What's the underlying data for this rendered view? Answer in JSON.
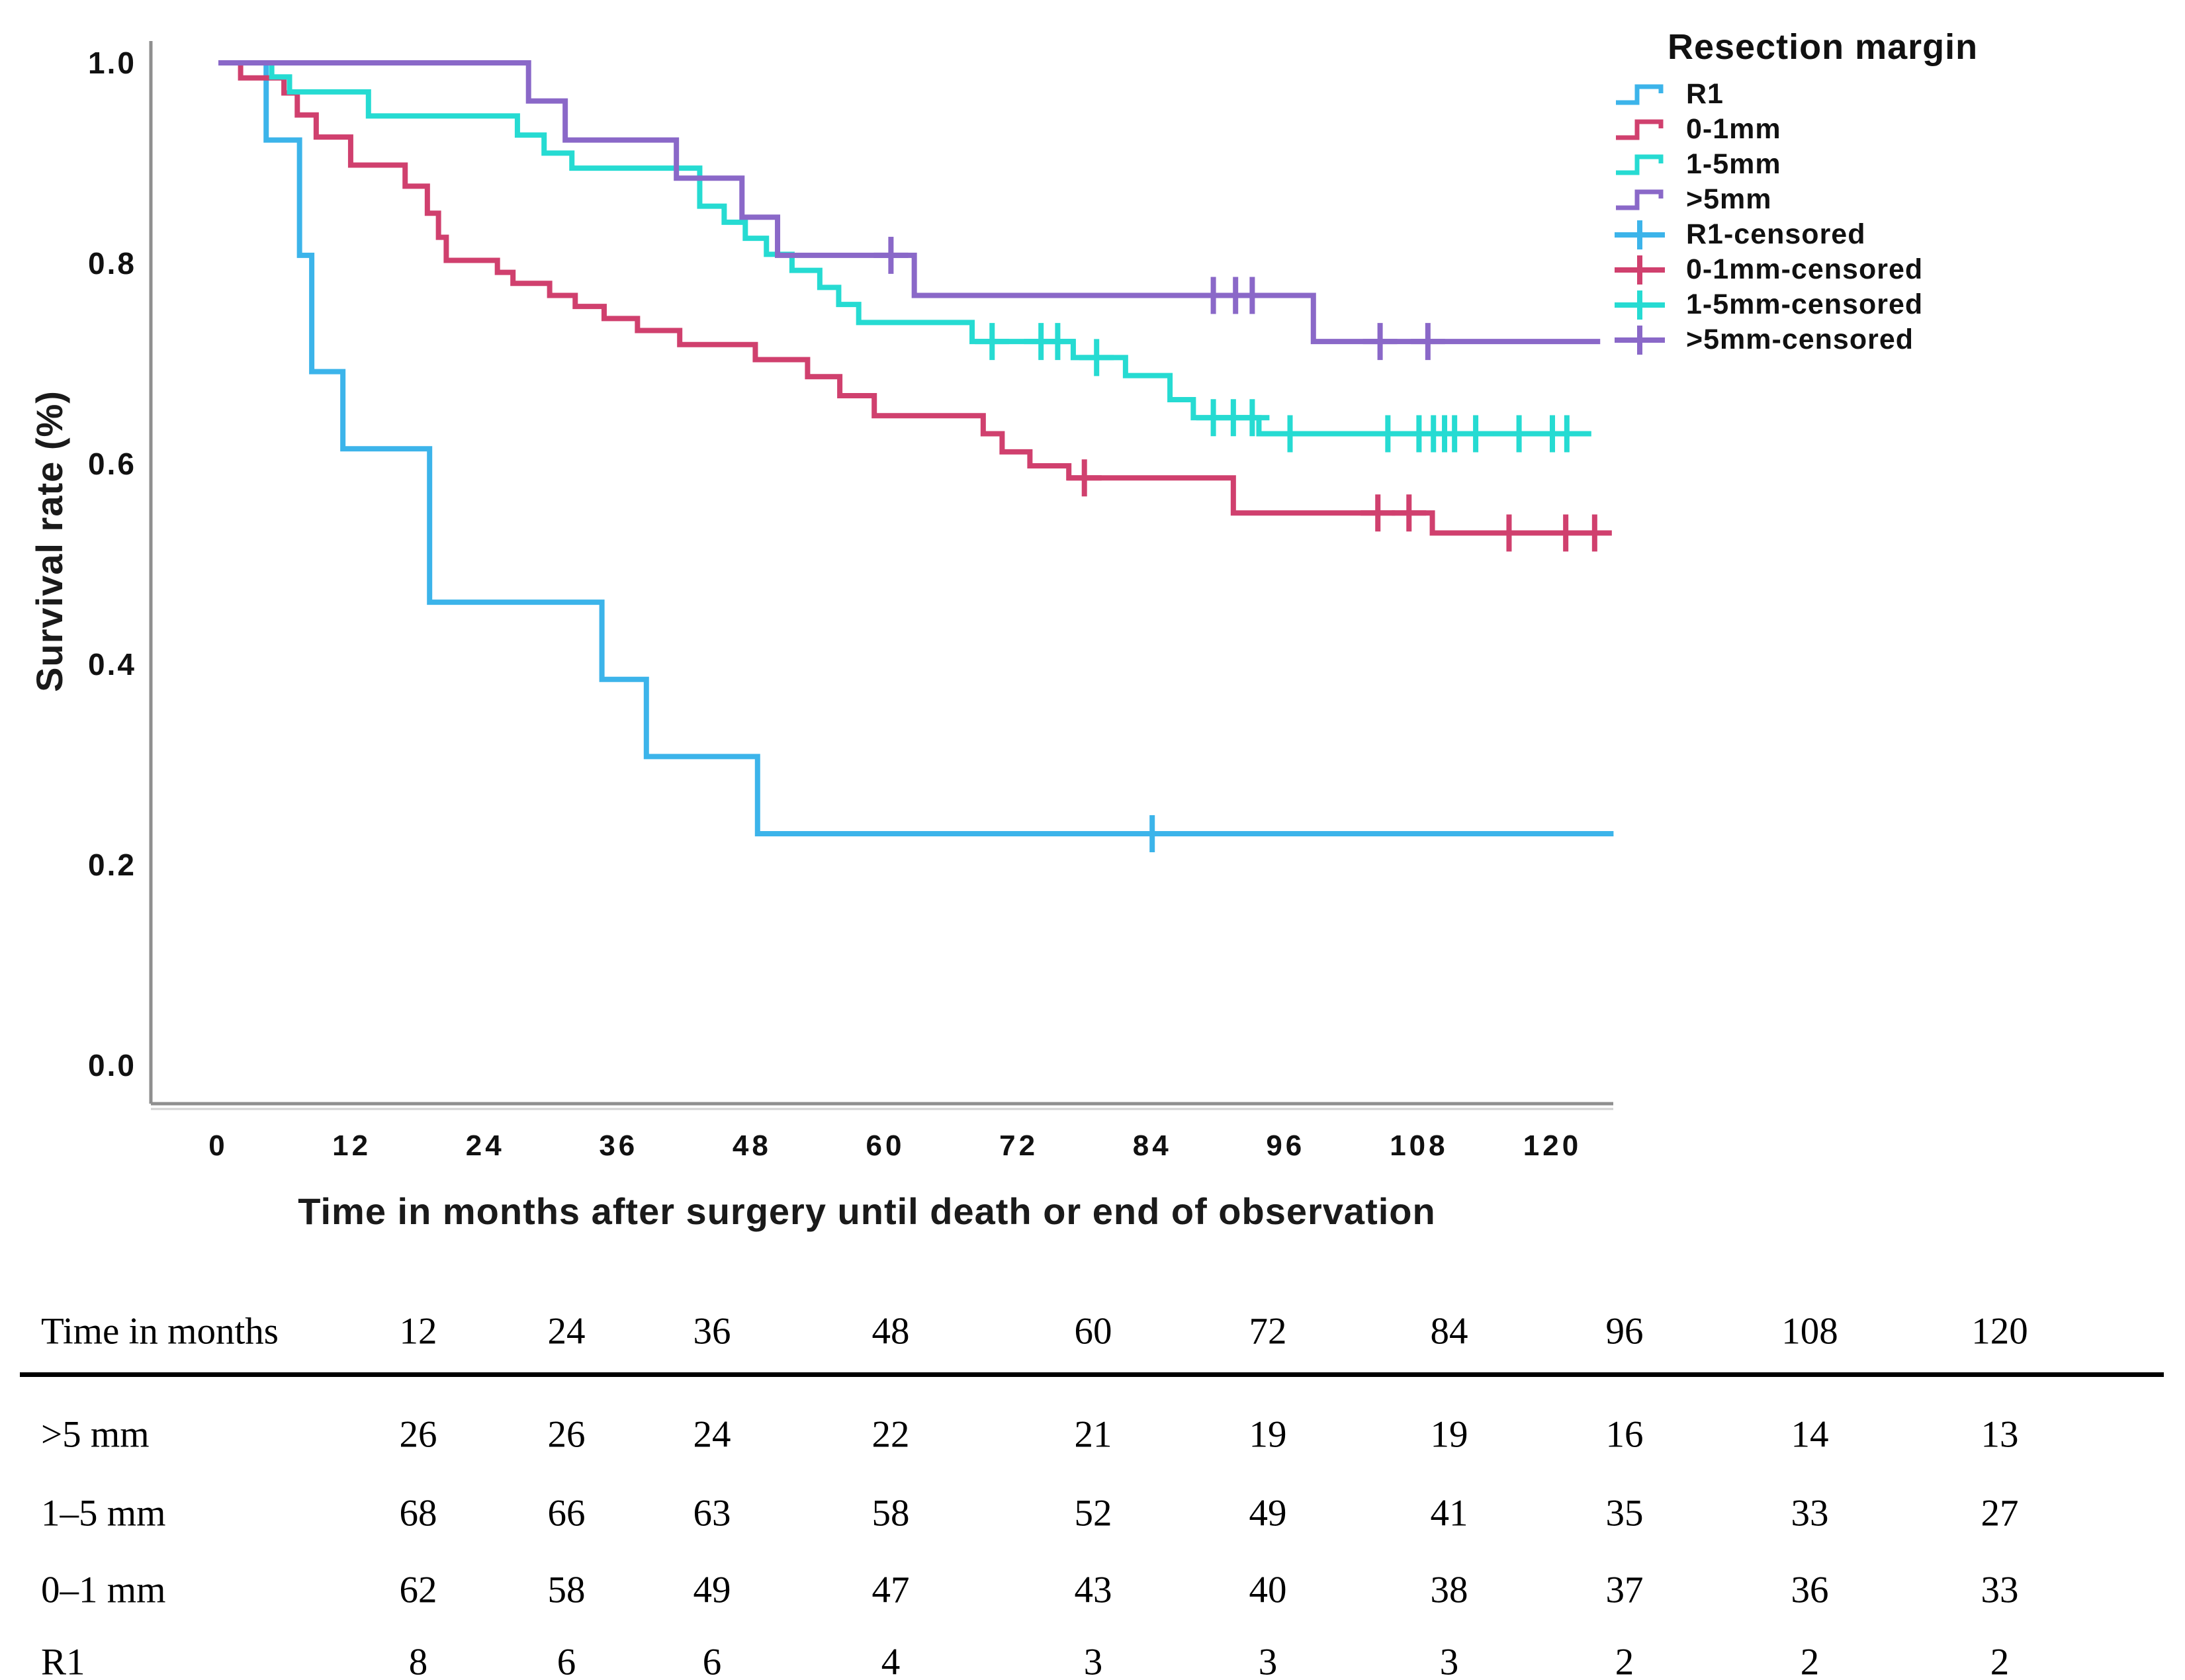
{
  "chart_data": {
    "type": "line",
    "subtype": "kaplan-meier-step",
    "title": "",
    "xlabel": "Time in months after surgery until death or end of observation",
    "ylabel": "Survival rate (%)",
    "xlim": [
      0,
      126
    ],
    "ylim": [
      0.0,
      1.0
    ],
    "grid": false,
    "legend_position": "top-right",
    "legend_title": "Resection margin",
    "x_axis": {
      "ticks": [
        {
          "label": "0",
          "value": 0
        },
        {
          "label": "12",
          "value": 12
        },
        {
          "label": "24",
          "value": 24
        },
        {
          "label": "36",
          "value": 36
        },
        {
          "label": "48",
          "value": 48
        },
        {
          "label": "60",
          "value": 60
        },
        {
          "label": "72",
          "value": 72
        },
        {
          "label": "84",
          "value": 84
        },
        {
          "label": "96",
          "value": 96
        },
        {
          "label": "108",
          "value": 108
        },
        {
          "label": "120",
          "value": 120
        }
      ]
    },
    "y_axis": {
      "ticks": [
        {
          "label": "1.0",
          "value": 1.0
        },
        {
          "label": "0.8",
          "value": 0.8
        },
        {
          "label": "0.6",
          "value": 0.6
        },
        {
          "label": "0.4",
          "value": 0.4
        },
        {
          "label": "0.2",
          "value": 0.2
        },
        {
          "label": "0.0",
          "value": 0.0
        }
      ]
    },
    "series": [
      {
        "name": "R1",
        "color": "#3CB4EA",
        "end_month": 125.5,
        "steps": [
          [
            0,
            1.0
          ],
          [
            4.3,
            0.923
          ],
          [
            7.3,
            0.808
          ],
          [
            8.4,
            0.692
          ],
          [
            11.2,
            0.615
          ],
          [
            19,
            0.462
          ],
          [
            34.5,
            0.385
          ],
          [
            38.5,
            0.308
          ],
          [
            48.5,
            0.231
          ]
        ],
        "censors": [
          [
            84,
            0.231
          ]
        ]
      },
      {
        "name": "0-1mm",
        "color": "#D0406E",
        "end_month": 124,
        "steps": [
          [
            0,
            1.0
          ],
          [
            2,
            0.985
          ],
          [
            5.9,
            0.97
          ],
          [
            7.1,
            0.948
          ],
          [
            8.8,
            0.926
          ],
          [
            11.9,
            0.898
          ],
          [
            16.8,
            0.877
          ],
          [
            18.8,
            0.85
          ],
          [
            19.8,
            0.826
          ],
          [
            20.5,
            0.803
          ],
          [
            25.1,
            0.791
          ],
          [
            26.5,
            0.78
          ],
          [
            29.8,
            0.768
          ],
          [
            32.1,
            0.757
          ],
          [
            34.7,
            0.745
          ],
          [
            37.7,
            0.733
          ],
          [
            41.5,
            0.719
          ],
          [
            48.3,
            0.704
          ],
          [
            53.0,
            0.687
          ],
          [
            55.9,
            0.668
          ],
          [
            59.0,
            0.648
          ],
          [
            68.8,
            0.63
          ],
          [
            70.5,
            0.612
          ],
          [
            73.0,
            0.598
          ],
          [
            76.5,
            0.586
          ],
          [
            91.3,
            0.551
          ],
          [
            109.2,
            0.531
          ]
        ],
        "censors": [
          [
            77.9,
            0.586
          ],
          [
            104.3,
            0.551
          ],
          [
            107.1,
            0.551
          ],
          [
            116.1,
            0.531
          ],
          [
            121.2,
            0.531
          ],
          [
            123.8,
            0.531
          ]
        ]
      },
      {
        "name": "1-5mm",
        "color": "#26DBD2",
        "end_month": 123.5,
        "steps": [
          [
            0,
            1.0
          ],
          [
            4.8,
            0.986
          ],
          [
            6.4,
            0.971
          ],
          [
            13.5,
            0.947
          ],
          [
            26.9,
            0.928
          ],
          [
            29.3,
            0.91
          ],
          [
            31.8,
            0.895
          ],
          [
            43.3,
            0.857
          ],
          [
            45.5,
            0.841
          ],
          [
            47.4,
            0.825
          ],
          [
            49.3,
            0.809
          ],
          [
            51.6,
            0.793
          ],
          [
            54.1,
            0.776
          ],
          [
            55.8,
            0.759
          ],
          [
            57.6,
            0.741
          ],
          [
            67.8,
            0.722
          ],
          [
            76.9,
            0.706
          ],
          [
            81.6,
            0.688
          ],
          [
            85.6,
            0.664
          ],
          [
            87.7,
            0.646
          ],
          [
            93.6,
            0.63
          ]
        ],
        "censors": [
          [
            69.6,
            0.722
          ],
          [
            74.0,
            0.722
          ],
          [
            75.5,
            0.722
          ],
          [
            79.0,
            0.706
          ],
          [
            89.5,
            0.646
          ],
          [
            91.3,
            0.646
          ],
          [
            93.0,
            0.646
          ],
          [
            96.4,
            0.63
          ],
          [
            105.2,
            0.63
          ],
          [
            108.0,
            0.63
          ],
          [
            109.3,
            0.63
          ],
          [
            110.3,
            0.63
          ],
          [
            111.2,
            0.63
          ],
          [
            113.1,
            0.63
          ],
          [
            117.0,
            0.63
          ],
          [
            120.0,
            0.63
          ],
          [
            121.3,
            0.63
          ]
        ]
      },
      {
        "name": ">5mm",
        "color": "#8A68C8",
        "end_month": 124.3,
        "steps": [
          [
            0,
            1.0
          ],
          [
            27.9,
            0.962
          ],
          [
            31.2,
            0.923
          ],
          [
            41.2,
            0.885
          ],
          [
            47.1,
            0.846
          ],
          [
            50.3,
            0.808
          ],
          [
            62.6,
            0.768
          ],
          [
            98.5,
            0.722
          ]
        ],
        "censors": [
          [
            60.5,
            0.808
          ],
          [
            89.5,
            0.768
          ],
          [
            91.5,
            0.768
          ],
          [
            93.0,
            0.768
          ],
          [
            104.5,
            0.722
          ],
          [
            108.8,
            0.722
          ]
        ]
      }
    ],
    "censored_legend": [
      {
        "name": "R1-censored",
        "color": "#3CB4EA"
      },
      {
        "name": "0-1mm-censored",
        "color": "#D0406E"
      },
      {
        "name": "1-5mm-censored",
        "color": "#26DBD2"
      },
      {
        "name": ">5mm-censored",
        "color": "#8A68C8"
      }
    ]
  },
  "risk_table": {
    "header_label": "Time in months",
    "time_points": [
      "12",
      "24",
      "36",
      "48",
      "60",
      "72",
      "84",
      "96",
      "108",
      "120"
    ],
    "rows": [
      {
        "label": ">5 mm",
        "values": [
          "26",
          "26",
          "24",
          "22",
          "21",
          "19",
          "19",
          "16",
          "14",
          "13"
        ]
      },
      {
        "label": "1–5 mm",
        "values": [
          "68",
          "66",
          "63",
          "58",
          "52",
          "49",
          "41",
          "35",
          "33",
          "27"
        ]
      },
      {
        "label": "0–1 mm",
        "values": [
          "62",
          "58",
          "49",
          "47",
          "43",
          "40",
          "38",
          "37",
          "36",
          "33"
        ]
      },
      {
        "label": "R1",
        "values": [
          "8",
          "6",
          "6",
          "4",
          "3",
          "3",
          "3",
          "2",
          "2",
          "2"
        ]
      }
    ]
  }
}
